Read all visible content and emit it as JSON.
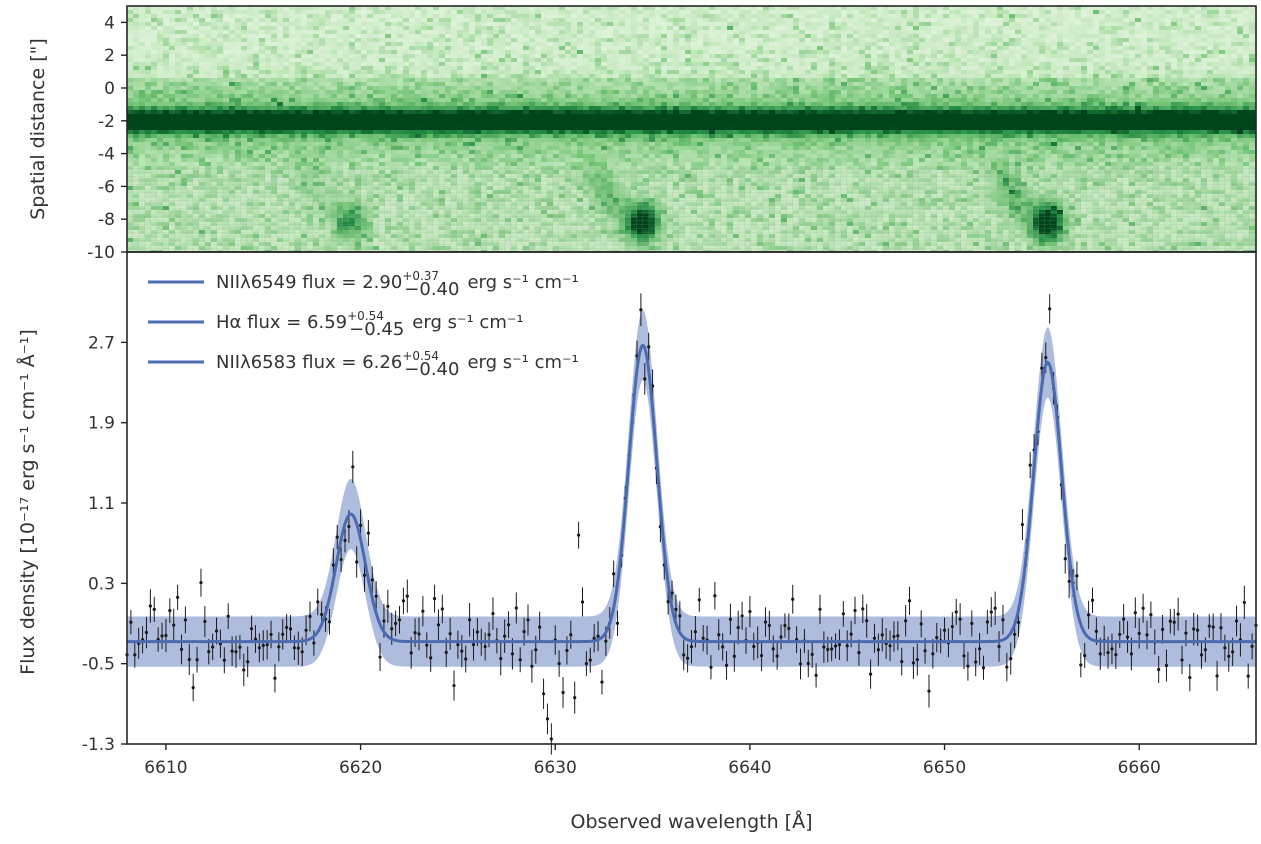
{
  "chart_data": [
    {
      "type": "heatmap",
      "panel": "top",
      "ylabel": "Spatial distance [\"]",
      "ylim": [
        -10,
        5
      ],
      "xlim": [
        6608,
        6666
      ],
      "yticks": [
        "4",
        "2",
        "0",
        "-2",
        "-4",
        "-6",
        "-8",
        "-10"
      ],
      "ytick_values": [
        4,
        2,
        0,
        -2,
        -4,
        -6,
        -8,
        -10
      ],
      "colormap": [
        "#f7fcf5",
        "#c7e9c0",
        "#74c476",
        "#238b45",
        "#00441b"
      ],
      "features": [
        {
          "kind": "continuum trace",
          "y": -2.0,
          "x_from": 6608,
          "x_to": 6666,
          "strength": 1.0
        },
        {
          "kind": "emission blob",
          "x": 6634.5,
          "y": -8.2,
          "strength": 1.0
        },
        {
          "kind": "emission blob",
          "x": 6655.3,
          "y": -8.2,
          "strength": 1.0
        },
        {
          "kind": "emission blob",
          "x": 6619.5,
          "y": -8.1,
          "strength": 0.45
        }
      ],
      "shaded_below_y": -4.8
    },
    {
      "type": "line",
      "panel": "bottom",
      "xlabel": "Observed wavelength [Å]",
      "ylabel": "Flux density [10⁻¹⁷ erg s⁻¹ cm⁻¹ Å⁻¹]",
      "xlim": [
        6608,
        6666
      ],
      "ylim": [
        -1.3,
        3.6
      ],
      "xticks": [
        "6610",
        "6620",
        "6630",
        "6640",
        "6650",
        "6660"
      ],
      "xtick_values": [
        6610,
        6620,
        6630,
        6640,
        6650,
        6660
      ],
      "yticks": [
        "-1.3",
        "-0.5",
        "0.3",
        "1.1",
        "1.9",
        "2.7"
      ],
      "ytick_values": [
        -1.3,
        -0.5,
        0.3,
        1.1,
        1.9,
        2.7
      ],
      "line_color": "#4c6aaf",
      "band_color": "#8c9fd0",
      "model": {
        "continuum": -0.28,
        "band_halfwidth_continuum": 0.25,
        "lines": [
          {
            "center": 6619.5,
            "amplitude": 1.27,
            "sigma": 0.75
          },
          {
            "center": 6634.5,
            "amplitude": 2.95,
            "sigma": 0.72
          },
          {
            "center": 6655.3,
            "amplitude": 2.78,
            "sigma": 0.72
          }
        ]
      },
      "data_points": {
        "x_start": 6608.0,
        "x_end": 6666.0,
        "step": 0.2,
        "noise_sigma": 0.21,
        "error_bar": 0.14,
        "outliers": [
          {
            "x": 6629.4,
            "y": -0.8
          },
          {
            "x": 6629.6,
            "y": -1.05
          },
          {
            "x": 6629.8,
            "y": -1.25
          },
          {
            "x": 6631.2,
            "y": 0.78
          }
        ]
      },
      "legend": [
        {
          "label": "NIIλ6549 flux = 2.90",
          "sup": "+0.37",
          "sub": "−0.40",
          "units": "erg s⁻¹ cm⁻¹"
        },
        {
          "label": "Hα flux = 6.59",
          "sup": "+0.54",
          "sub": "−0.45",
          "units": "erg s⁻¹ cm⁻¹"
        },
        {
          "label": "NIIλ6583 flux = 6.26",
          "sup": "+0.54",
          "sub": "−0.40",
          "units": "erg s⁻¹ cm⁻¹"
        }
      ],
      "legend_placement": "upper-left"
    }
  ]
}
